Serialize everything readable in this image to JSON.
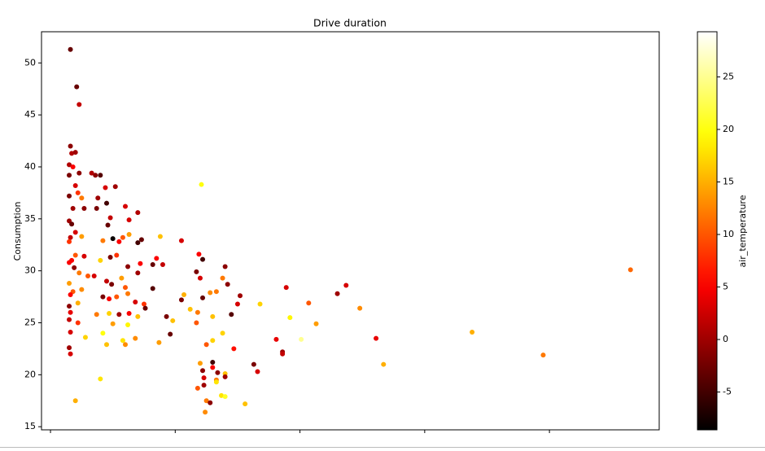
{
  "chart_data": {
    "type": "scatter",
    "title": "Drive duration",
    "ylabel": "Consumption",
    "colorbar_label": "air_temperature",
    "colormap": "hot",
    "x": [
      0.16,
      0.21,
      0.23,
      0.16,
      0.17,
      0.2,
      0.15,
      0.18,
      0.15,
      0.23,
      0.2,
      0.22,
      0.15,
      0.18,
      0.25,
      0.27,
      0.15,
      0.17,
      0.16,
      0.2,
      0.25,
      0.15,
      0.17,
      0.2,
      0.27,
      0.15,
      0.19,
      0.23,
      0.15,
      0.18,
      0.16,
      0.22,
      0.15,
      0.16,
      0.15,
      0.22,
      0.16,
      0.28,
      0.15,
      0.16,
      0.2,
      0.25,
      0.3,
      0.36,
      0.4,
      0.33,
      0.44,
      0.52,
      0.38,
      0.37,
      0.45,
      0.6,
      0.48,
      0.46,
      0.63,
      0.7,
      0.5,
      0.58,
      0.63,
      0.73,
      0.42,
      0.55,
      0.7,
      0.4,
      0.48,
      0.53,
      0.62,
      0.72,
      0.35,
      0.45,
      0.49,
      0.6,
      0.7,
      0.42,
      0.47,
      0.53,
      0.62,
      0.68,
      0.75,
      0.37,
      0.47,
      0.55,
      0.63,
      0.7,
      0.5,
      0.62,
      0.42,
      0.58,
      0.68,
      0.45,
      0.6,
      0.4,
      0.57,
      0.76,
      0.82,
      0.85,
      0.9,
      0.82,
      0.88,
      0.93,
      0.98,
      0.96,
      0.87,
      1.05,
      1.07,
      1.05,
      1.12,
      1.17,
      1.19,
      1.22,
      1.2,
      1.18,
      1.17,
      1.22,
      1.21,
      1.2,
      1.22,
      1.23,
      1.23,
      1.18,
      1.25,
      1.28,
      1.24,
      1.25,
      1.3,
      1.3,
      1.28,
      1.33,
      1.3,
      1.3,
      1.34,
      1.33,
      1.33,
      1.37,
      1.4,
      1.38,
      1.4,
      1.4,
      1.38,
      1.4,
      1.42,
      1.45,
      1.47,
      1.5,
      1.52,
      1.56,
      1.63,
      1.66,
      1.68,
      1.81,
      1.86,
      1.86,
      1.89,
      1.92,
      2.01,
      2.07,
      2.13,
      2.3,
      2.37,
      2.48,
      2.61,
      2.67,
      3.38,
      3.95,
      4.65
    ],
    "values": [
      51.3,
      47.7,
      46.0,
      42.0,
      41.3,
      41.4,
      40.2,
      40.0,
      39.2,
      39.4,
      38.2,
      37.5,
      37.2,
      36.0,
      37.0,
      36.0,
      34.8,
      34.5,
      33.2,
      33.7,
      33.3,
      32.8,
      31.0,
      31.5,
      31.4,
      30.8,
      30.3,
      29.8,
      28.8,
      28.0,
      27.7,
      26.9,
      26.6,
      26.0,
      25.3,
      25.0,
      24.1,
      23.6,
      22.6,
      22.0,
      17.5,
      28.2,
      29.5,
      39.2,
      39.2,
      39.4,
      38.0,
      38.1,
      37.0,
      36.0,
      36.5,
      36.2,
      35.1,
      34.4,
      34.9,
      35.6,
      33.1,
      33.2,
      33.5,
      33.0,
      32.9,
      32.8,
      32.7,
      31.0,
      31.3,
      31.5,
      30.4,
      30.7,
      29.5,
      29.0,
      28.7,
      28.4,
      29.8,
      27.5,
      27.3,
      27.5,
      27.8,
      27.0,
      26.8,
      25.8,
      25.9,
      25.8,
      25.9,
      25.6,
      24.9,
      24.8,
      24.0,
      23.3,
      23.5,
      22.9,
      22.9,
      19.6,
      29.3,
      26.4,
      30.6,
      31.2,
      30.6,
      28.3,
      33.3,
      25.6,
      25.2,
      23.9,
      23.1,
      32.9,
      27.7,
      27.2,
      26.3,
      29.9,
      31.6,
      31.1,
      29.3,
      26.0,
      25.0,
      27.4,
      38.3,
      21.1,
      20.4,
      19.7,
      19.0,
      18.7,
      17.5,
      17.3,
      16.4,
      22.9,
      23.3,
      25.6,
      27.9,
      28.0,
      21.2,
      20.7,
      20.2,
      19.5,
      19.3,
      18.0,
      17.9,
      24.0,
      20.1,
      19.8,
      29.3,
      30.4,
      28.7,
      25.8,
      22.5,
      26.8,
      27.6,
      17.2,
      21.0,
      20.3,
      26.8,
      23.4,
      22.2,
      22.0,
      28.4,
      25.5,
      23.4,
      26.9,
      24.9,
      27.8,
      28.6,
      26.4,
      23.5,
      21.0,
      24.1,
      21.9,
      30.1
    ],
    "c": [
      -3,
      -3,
      2,
      -1,
      1,
      0,
      1,
      5,
      -2,
      -1,
      3,
      8,
      -2,
      0,
      12,
      -1,
      0,
      -3,
      2,
      3,
      14,
      8,
      5,
      10,
      3,
      5,
      -1,
      12,
      14,
      10,
      5,
      15,
      -1,
      4,
      2,
      8,
      3,
      17,
      0,
      3,
      15,
      13,
      10,
      -1,
      -4,
      1,
      3,
      0,
      0,
      -2,
      -5,
      3,
      2,
      -3,
      3,
      1,
      -8,
      10,
      14,
      -3,
      12,
      5,
      -5,
      17,
      -2,
      8,
      -1,
      5,
      3,
      2,
      -2,
      10,
      0,
      -2,
      5,
      10,
      12,
      3,
      8,
      12,
      17,
      0,
      5,
      16,
      14,
      19,
      20,
      18,
      13,
      16,
      13,
      18,
      14,
      -3,
      -3,
      5,
      2,
      -4,
      16,
      -2,
      16,
      -3,
      14,
      3,
      15,
      -2,
      16,
      -2,
      5,
      -5,
      3,
      12,
      10,
      -3,
      20,
      14,
      -1,
      3,
      0,
      10,
      12,
      -1,
      13,
      10,
      17,
      16,
      13,
      12,
      -5,
      5,
      -1,
      12,
      18,
      18,
      21,
      17,
      16,
      0,
      12,
      -1,
      -1,
      -4,
      6,
      3,
      0,
      16,
      -2,
      3,
      17,
      4,
      0,
      2,
      3,
      19,
      25,
      10,
      14,
      0,
      3,
      13,
      4,
      15,
      15,
      12,
      11
    ],
    "xlim": [
      -0.072,
      4.88
    ],
    "xticks": [
      0,
      1,
      2,
      3,
      4
    ],
    "ylim": [
      14.7,
      53.0
    ],
    "yticks": [
      15,
      20,
      25,
      30,
      35,
      40,
      45,
      50
    ],
    "clim": [
      -8.6,
      29.3
    ],
    "cticks": [
      -5,
      0,
      5,
      10,
      15,
      20,
      25
    ]
  }
}
